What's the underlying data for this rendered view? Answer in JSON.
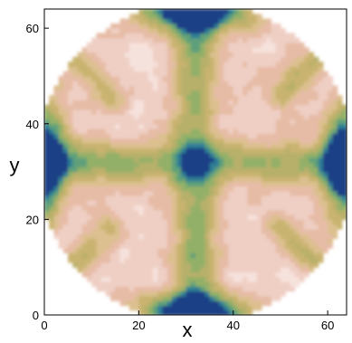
{
  "chart_data": {
    "type": "heatmap",
    "plot_style": "filled-contour",
    "xlabel": "x",
    "ylabel": "y",
    "xlim": [
      0,
      64
    ],
    "ylim": [
      0,
      64
    ],
    "xticks": [
      {
        "value": 0,
        "label": "0"
      },
      {
        "value": 20,
        "label": "20"
      },
      {
        "value": 40,
        "label": "40"
      },
      {
        "value": 60,
        "label": "60"
      }
    ],
    "yticks": [
      {
        "value": 0,
        "label": "0"
      },
      {
        "value": 20,
        "label": "20"
      },
      {
        "value": 40,
        "label": "40"
      },
      {
        "value": 60,
        "label": "60"
      }
    ],
    "grid": false,
    "colormap": [
      "#ffffff",
      "#f6e2dc",
      "#efcfc4",
      "#e6bca6",
      "#dcc08f",
      "#c9b36f",
      "#b7b06a",
      "#93b067",
      "#5fa07a",
      "#2f7e94",
      "#1a3f86"
    ],
    "field": {
      "domain_radius": 33,
      "center": [
        32,
        32
      ],
      "arms": [
        {
          "from": [
            32,
            64
          ],
          "to": [
            32,
            0
          ],
          "level": 0.45,
          "half_width": 3
        },
        {
          "from": [
            0,
            32
          ],
          "to": [
            64,
            32
          ],
          "level": 0.45,
          "half_width": 3
        },
        {
          "from": [
            14,
            46
          ],
          "to": [
            4,
            56
          ],
          "level": 0.3,
          "half_width": 2
        },
        {
          "from": [
            50,
            46
          ],
          "to": [
            60,
            56
          ],
          "level": 0.3,
          "half_width": 2
        },
        {
          "from": [
            14,
            18
          ],
          "to": [
            4,
            8
          ],
          "level": 0.3,
          "half_width": 2
        },
        {
          "from": [
            50,
            18
          ],
          "to": [
            60,
            8
          ],
          "level": 0.3,
          "half_width": 2
        }
      ],
      "hotspots": [
        {
          "x": 32,
          "y": 64,
          "level": 1.0,
          "spread_x": 8,
          "spread_y": 3
        },
        {
          "x": 32,
          "y": 0,
          "level": 1.0,
          "spread_x": 8,
          "spread_y": 3
        },
        {
          "x": 0,
          "y": 32,
          "level": 1.0,
          "spread_x": 3,
          "spread_y": 8
        },
        {
          "x": 64,
          "y": 32,
          "level": 1.0,
          "spread_x": 3,
          "spread_y": 8
        }
      ]
    }
  }
}
